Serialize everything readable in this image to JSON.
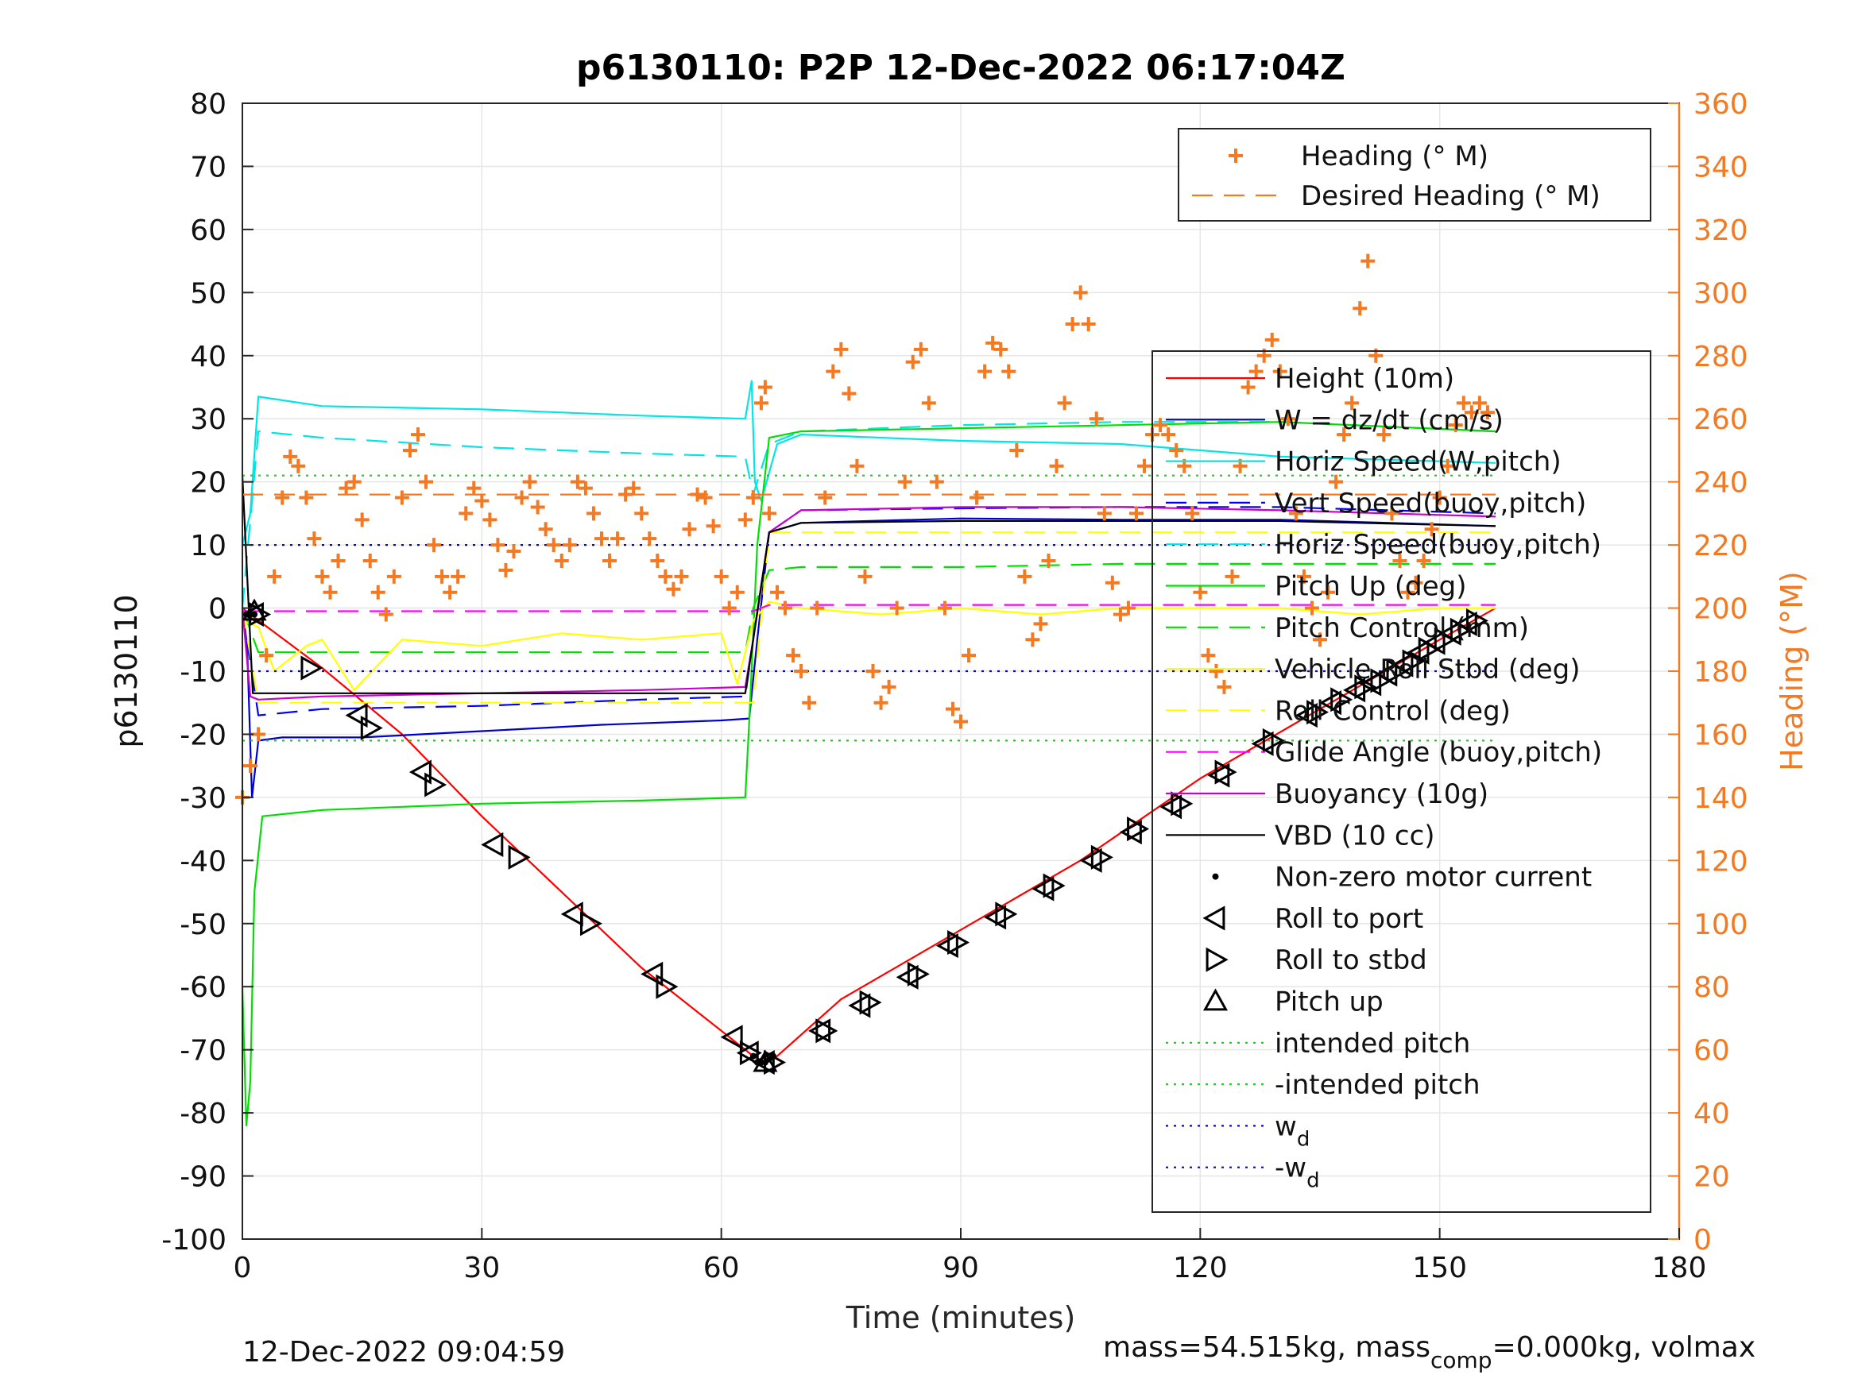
{
  "chart_data": {
    "type": "line",
    "title": "p6130110: P2P 12-Dec-2022 06:17:04Z",
    "xlabel": "Time (minutes)",
    "ylabel": "p6130110",
    "ylabel_right": "Heading (°M)",
    "xlim": [
      0,
      180
    ],
    "ylim": [
      -100,
      80
    ],
    "ylim_right": [
      0,
      360
    ],
    "x_ticks": [
      "0",
      "30",
      "60",
      "90",
      "120",
      "150",
      "180"
    ],
    "y_ticks": [
      "80",
      "70",
      "60",
      "50",
      "40",
      "30",
      "20",
      "10",
      "0",
      "-10",
      "-20",
      "-30",
      "-40",
      "-50",
      "-60",
      "-70",
      "-80",
      "-90",
      "-100"
    ],
    "y_ticks_right": [
      "360",
      "340",
      "320",
      "300",
      "280",
      "260",
      "240",
      "220",
      "200",
      "180",
      "160",
      "140",
      "120",
      "100",
      "80",
      "60",
      "40",
      "20",
      "0"
    ],
    "grid": true,
    "footer_left": "12-Dec-2022 09:04:59",
    "footer_right_parts": [
      "mass=54.515kg, mass",
      "comp",
      "=0.000kg, volmax"
    ],
    "legend_top": {
      "placement": "top-right",
      "entries": [
        {
          "label": "Heading (° M)",
          "color": "#F47920",
          "style": "plus"
        },
        {
          "label": "Desired Heading (° M)",
          "color": "#F47920",
          "style": "dash"
        }
      ]
    },
    "legend_main": {
      "placement": "right",
      "entries": [
        {
          "label": "Height (10m)",
          "color": "#FF0000",
          "style": "solid"
        },
        {
          "label": "W = dz/dt (cm/s)",
          "color": "#0000CC",
          "style": "solid"
        },
        {
          "label": "Horiz Speed(W,pitch)",
          "color": "#00E5E5",
          "style": "solid"
        },
        {
          "label": "Vert Speed(buoy,pitch)",
          "color": "#0000FF",
          "style": "dash"
        },
        {
          "label": "Horiz Speed(buoy,pitch)",
          "color": "#00E5E5",
          "style": "dash"
        },
        {
          "label": "Pitch Up (deg)",
          "color": "#00E000",
          "style": "solid"
        },
        {
          "label": "Pitch Control (mm)",
          "color": "#00E000",
          "style": "dash"
        },
        {
          "label": "Vehicle Roll Stbd (deg)",
          "color": "#FFFF00",
          "style": "solid"
        },
        {
          "label": "Roll Control (deg)",
          "color": "#FFFF00",
          "style": "dash"
        },
        {
          "label": "Glide Angle (buoy,pitch)",
          "color": "#FF00FF",
          "style": "dash"
        },
        {
          "label": "Buoyancy (10g)",
          "color": "#CC00CC",
          "style": "solid"
        },
        {
          "label": "VBD (10 cc)",
          "color": "#000000",
          "style": "solid"
        },
        {
          "label": "Non-zero motor current",
          "color": "#000000",
          "style": "dot-marker"
        },
        {
          "label": "Roll to port",
          "color": "#000000",
          "style": "tri-left"
        },
        {
          "label": "Roll to stbd",
          "color": "#000000",
          "style": "tri-right"
        },
        {
          "label": "Pitch up",
          "color": "#000000",
          "style": "tri-up"
        },
        {
          "label": "intended pitch",
          "color": "#00E000",
          "style": "dotted"
        },
        {
          "label": "-intended pitch",
          "color": "#00E000",
          "style": "dotted"
        },
        {
          "label": "w",
          "sub": "d",
          "color": "#0000FF",
          "style": "dotted"
        },
        {
          "label": "-w",
          "sub": "d",
          "color": "#0000FF",
          "style": "dotted"
        }
      ]
    },
    "series": [
      {
        "name": "Height (10m)",
        "color": "#FF0000",
        "style": "solid",
        "axis": "left",
        "x": [
          0,
          1,
          10,
          20,
          30,
          40,
          50,
          60,
          64,
          65.5,
          67,
          75,
          90,
          105,
          120,
          135,
          150,
          157
        ],
        "y": [
          0,
          -1,
          -9.5,
          -20,
          -33,
          -45,
          -57,
          -67,
          -71,
          -72,
          -71,
          -62,
          -51,
          -40,
          -27,
          -16,
          -5,
          0
        ]
      },
      {
        "name": "W = dz/dt (cm/s)",
        "color": "#0000CC",
        "style": "solid",
        "axis": "left",
        "x": [
          0,
          0.6,
          1.2,
          2,
          5,
          15,
          30,
          45,
          60,
          63.5,
          64.5,
          66,
          70,
          90,
          110,
          130,
          157
        ],
        "y": [
          0,
          -6,
          -30,
          -21,
          -20.5,
          -20.5,
          -19.5,
          -18.5,
          -17.8,
          -17.5,
          -5,
          12,
          13.5,
          14.2,
          14,
          14,
          13
        ]
      },
      {
        "name": "Horiz Speed(W,pitch)",
        "color": "#00E5E5",
        "style": "solid",
        "axis": "left",
        "x": [
          0,
          1,
          2,
          10,
          30,
          50,
          63,
          63.8,
          64.2,
          65,
          67,
          70,
          90,
          110,
          130,
          157
        ],
        "y": [
          10,
          15,
          33.5,
          32,
          31.5,
          30.5,
          30,
          36,
          20,
          17,
          26,
          27.5,
          26.5,
          26,
          24,
          23
        ]
      },
      {
        "name": "Vert Speed(buoy,pitch)",
        "color": "#0000FF",
        "style": "dash",
        "axis": "left",
        "x": [
          0,
          2,
          10,
          30,
          50,
          63,
          64,
          66,
          70,
          90,
          110,
          130,
          157
        ],
        "y": [
          0,
          -17,
          -16,
          -15.5,
          -14.5,
          -14,
          -5,
          12,
          15.5,
          15.8,
          16,
          16,
          15
        ]
      },
      {
        "name": "Horiz Speed(buoy,pitch)",
        "color": "#00E5E5",
        "style": "dash",
        "axis": "left",
        "x": [
          0,
          2,
          10,
          30,
          50,
          63,
          64,
          66,
          70,
          90,
          110,
          130,
          157
        ],
        "y": [
          0,
          28,
          27,
          25.5,
          24.5,
          24,
          18,
          26,
          28,
          29,
          29.5,
          29.5,
          28
        ]
      },
      {
        "name": "Pitch Up (deg)",
        "color": "#00E000",
        "style": "solid",
        "axis": "left",
        "x": [
          0,
          0.5,
          1,
          1.5,
          2.5,
          10,
          30,
          50,
          63,
          63.5,
          64.5,
          66,
          70,
          90,
          110,
          130,
          157
        ],
        "y": [
          -60,
          -82,
          -75,
          -45,
          -33,
          -32,
          -31,
          -30.5,
          -30,
          -18,
          10,
          27,
          28,
          28.5,
          29,
          29.5,
          28
        ]
      },
      {
        "name": "Pitch Control (mm)",
        "color": "#00E000",
        "style": "dash",
        "axis": "left",
        "x": [
          0,
          2,
          10,
          30,
          50,
          63,
          64,
          66,
          70,
          90,
          110,
          130,
          157
        ],
        "y": [
          0,
          -7,
          -7,
          -7,
          -7,
          -7,
          0,
          6,
          6.5,
          6.5,
          7,
          7,
          7
        ]
      },
      {
        "name": "Vehicle Roll Stbd (deg)",
        "color": "#FFFF00",
        "style": "solid",
        "axis": "left",
        "x": [
          0,
          2,
          4,
          8,
          10,
          14,
          20,
          30,
          40,
          50,
          60,
          62,
          64,
          66,
          70,
          80,
          90,
          100,
          110,
          120,
          130,
          140,
          150,
          157
        ],
        "y": [
          -2,
          -3,
          -10,
          -6,
          -5,
          -13,
          -5,
          -6,
          -4,
          -5,
          -4,
          -12,
          -2,
          1,
          0,
          -1,
          0,
          -1,
          0,
          0,
          0,
          -1,
          0,
          0
        ]
      },
      {
        "name": "Roll Control (deg)",
        "color": "#FFFF00",
        "style": "dash",
        "axis": "left",
        "x": [
          0,
          2,
          64,
          66,
          157
        ],
        "y": [
          0,
          -15,
          -15,
          12,
          12
        ]
      },
      {
        "name": "Glide Angle (buoy,pitch)",
        "color": "#FF00FF",
        "style": "dash",
        "axis": "left",
        "x": [
          0,
          2,
          64,
          66,
          157
        ],
        "y": [
          -0.5,
          -0.5,
          -0.5,
          0.5,
          0.5
        ]
      },
      {
        "name": "Buoyancy (10g)",
        "color": "#CC00CC",
        "style": "solid",
        "axis": "left",
        "x": [
          0,
          1,
          2,
          10,
          30,
          50,
          63,
          64,
          66,
          70,
          90,
          110,
          130,
          157
        ],
        "y": [
          0,
          -14,
          -14.5,
          -14,
          -13.5,
          -13,
          -12.5,
          -5,
          12,
          15.5,
          16,
          16,
          15.5,
          14.5
        ]
      },
      {
        "name": "VBD (10 cc)",
        "color": "#000000",
        "style": "solid",
        "axis": "left",
        "x": [
          0,
          0.8,
          1.3,
          20,
          40,
          63,
          64,
          66,
          70,
          90,
          110,
          130,
          157
        ],
        "y": [
          21,
          0,
          -13.5,
          -13.5,
          -13.5,
          -13.5,
          -5,
          12,
          13.5,
          13.8,
          13.8,
          13.8,
          13
        ]
      },
      {
        "name": "intended pitch",
        "color": "#00E000",
        "style": "dotted",
        "axis": "left",
        "x": [
          0,
          157
        ],
        "y": [
          21,
          21
        ]
      },
      {
        "name": "-intended pitch",
        "color": "#00E000",
        "style": "dotted",
        "axis": "left",
        "x": [
          0,
          157
        ],
        "y": [
          -21,
          -21
        ]
      },
      {
        "name": "w_d",
        "color": "#0000FF",
        "style": "dotted",
        "axis": "left",
        "x": [
          0,
          157
        ],
        "y": [
          10,
          10
        ]
      },
      {
        "name": "-w_d",
        "color": "#0000FF",
        "style": "dotted",
        "axis": "left",
        "x": [
          0,
          157
        ],
        "y": [
          -10,
          -10
        ]
      },
      {
        "name": "Desired Heading (° M)",
        "color": "#F47920",
        "style": "dash",
        "axis": "right",
        "x": [
          0,
          157
        ],
        "y": [
          236,
          236
        ]
      },
      {
        "name": "Heading (° M)",
        "color": "#F47920",
        "style": "plus",
        "axis": "right",
        "x": [
          0,
          1,
          2,
          3,
          4,
          5,
          6,
          7,
          8,
          9,
          10,
          11,
          12,
          13,
          14,
          15,
          16,
          17,
          18,
          19,
          20,
          21,
          22,
          23,
          24,
          25,
          26,
          27,
          28,
          29,
          30,
          31,
          32,
          33,
          34,
          35,
          36,
          37,
          38,
          39,
          40,
          41,
          42,
          43,
          44,
          45,
          46,
          47,
          48,
          49,
          50,
          51,
          52,
          53,
          54,
          55,
          56,
          57,
          58,
          59,
          60,
          61,
          62,
          63,
          64,
          65,
          65.5,
          66,
          67,
          68,
          69,
          70,
          71,
          72,
          73,
          74,
          75,
          76,
          77,
          78,
          79,
          80,
          81,
          82,
          83,
          84,
          85,
          86,
          87,
          88,
          89,
          90,
          91,
          92,
          93,
          94,
          95,
          96,
          97,
          98,
          99,
          100,
          101,
          102,
          103,
          104,
          105,
          106,
          107,
          108,
          109,
          110,
          111,
          112,
          113,
          114,
          115,
          116,
          117,
          118,
          119,
          120,
          121,
          122,
          123,
          124,
          125,
          126,
          127,
          128,
          129,
          130,
          131,
          132,
          133,
          134,
          135,
          136,
          137,
          138,
          139,
          140,
          141,
          142,
          143,
          144,
          145,
          146,
          147,
          148,
          149,
          150,
          151,
          152,
          153,
          154,
          155,
          156
        ],
        "y": [
          140,
          150,
          160,
          185,
          210,
          235,
          248,
          245,
          235,
          222,
          210,
          205,
          215,
          238,
          240,
          228,
          215,
          205,
          198,
          210,
          235,
          250,
          255,
          240,
          220,
          210,
          205,
          210,
          230,
          238,
          234,
          228,
          220,
          212,
          218,
          235,
          240,
          232,
          225,
          220,
          215,
          220,
          240,
          238,
          230,
          222,
          215,
          222,
          236,
          238,
          230,
          222,
          215,
          210,
          206,
          210,
          225,
          236,
          235,
          226,
          210,
          200,
          205,
          228,
          235,
          265,
          270,
          230,
          205,
          200,
          185,
          180,
          170,
          200,
          235,
          275,
          282,
          268,
          245,
          210,
          180,
          170,
          175,
          200,
          240,
          278,
          282,
          265,
          240,
          200,
          168,
          164,
          185,
          235,
          275,
          284,
          282,
          275,
          250,
          210,
          190,
          195,
          215,
          245,
          265,
          290,
          300,
          290,
          260,
          230,
          208,
          198,
          200,
          230,
          245,
          255,
          258,
          255,
          250,
          245,
          230,
          205,
          185,
          180,
          175,
          210,
          245,
          270,
          275,
          280,
          285,
          275,
          260,
          230,
          210,
          200,
          190,
          205,
          240,
          255,
          265,
          295,
          310,
          280,
          255,
          230,
          215,
          205,
          208,
          215,
          225,
          235,
          245,
          258,
          265,
          262,
          265,
          262
        ]
      },
      {
        "name": "Non-zero motor current",
        "color": "#000000",
        "style": "dots",
        "axis": "left",
        "x": [
          0.5,
          1,
          1.5,
          64,
          64.5,
          65,
          65.5,
          66,
          66.5
        ],
        "y": [
          -1,
          -1,
          -1,
          -71,
          -72,
          -72,
          -72,
          -71.5,
          -71
        ]
      },
      {
        "name": "Roll to port",
        "color": "#000000",
        "style": "tri-left",
        "axis": "left",
        "x": [
          1.5,
          14.5,
          22.5,
          31.5,
          41.5,
          51.5,
          61.5,
          63.5,
          65.5,
          72.5,
          77.5,
          83.5,
          88.5,
          94.5,
          100.5,
          106.5,
          111.5,
          116.5,
          122.5,
          128,
          133.5,
          136.5,
          139.5,
          141.5,
          143.5,
          145.5,
          147.5,
          149.5,
          151.5,
          153.5
        ],
        "y": [
          -1,
          -17,
          -26,
          -37.5,
          -48.5,
          -58,
          -68,
          -70.5,
          -72,
          -67,
          -63,
          -58.5,
          -53.5,
          -49,
          -44.5,
          -40,
          -35.5,
          -31.5,
          -26.5,
          -21.5,
          -17,
          -15,
          -13,
          -12,
          -10.5,
          -9,
          -7,
          -5.5,
          -4,
          -2.5
        ]
      },
      {
        "name": "Roll to stbd",
        "color": "#000000",
        "style": "tri-right",
        "axis": "left",
        "x": [
          2,
          8.5,
          16,
          24,
          34.5,
          43.5,
          53,
          63.5,
          66.5,
          73,
          78.5,
          84.5,
          89.5,
          95.5,
          101.5,
          107.5,
          112,
          117.5,
          123,
          129,
          134.5,
          137.5,
          140.5,
          142.5,
          144.5,
          146.5,
          148.5,
          150.5,
          152.5,
          154.5
        ],
        "y": [
          -1,
          -9.5,
          -19,
          -28,
          -39.5,
          -50,
          -60,
          -70.5,
          -72,
          -67,
          -62.5,
          -58,
          -53,
          -48.5,
          -44,
          -39.5,
          -35,
          -31,
          -26,
          -21,
          -16.5,
          -14.5,
          -12.5,
          -11.5,
          -10,
          -8.5,
          -6.5,
          -5,
          -3.5,
          -2
        ]
      },
      {
        "name": "Pitch up",
        "color": "#000000",
        "style": "tri-up",
        "axis": "left",
        "x": [
          1.5,
          65.5
        ],
        "y": [
          -0.5,
          -72
        ]
      }
    ]
  }
}
